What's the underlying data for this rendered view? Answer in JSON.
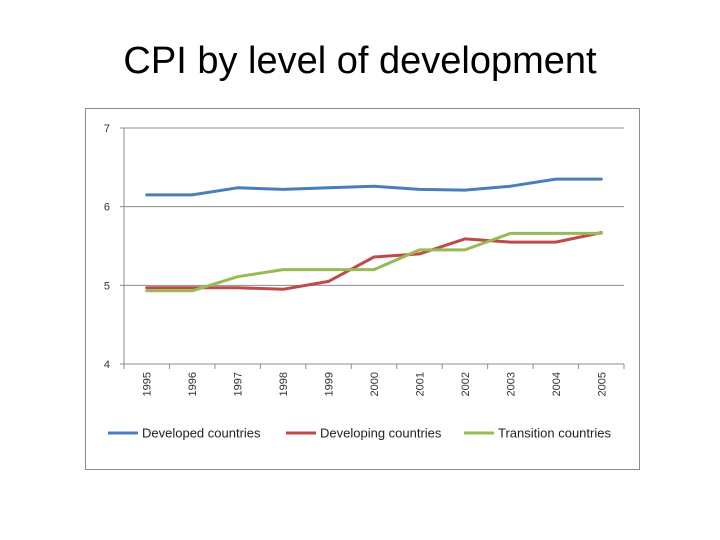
{
  "slide": {
    "title": "CPI by level of development"
  },
  "chart_data": {
    "type": "line",
    "title": "",
    "xlabel": "",
    "ylabel": "",
    "ylim": [
      4,
      7
    ],
    "y_ticks": [
      "4",
      "5",
      "6",
      "7"
    ],
    "categories": [
      "1995",
      "1996",
      "1997",
      "1998",
      "1999",
      "2000",
      "2001",
      "2002",
      "2003",
      "2004",
      "2005"
    ],
    "grid": "horizontal",
    "legend_position": "bottom",
    "series": [
      {
        "name": "Developed countries",
        "color": "#4a7ebb",
        "values": [
          6.15,
          6.15,
          6.24,
          6.22,
          6.24,
          6.26,
          6.22,
          6.21,
          6.26,
          6.35,
          6.35
        ]
      },
      {
        "name": "Developing countries",
        "color": "#be4b48",
        "values": [
          4.97,
          4.97,
          4.97,
          4.95,
          5.05,
          5.36,
          5.4,
          5.59,
          5.55,
          5.55,
          5.67
        ]
      },
      {
        "name": "Transition countries",
        "color": "#98b954",
        "values": [
          4.93,
          4.93,
          5.11,
          5.2,
          5.2,
          5.2,
          5.45,
          5.45,
          5.66,
          5.66,
          5.66
        ]
      }
    ]
  }
}
